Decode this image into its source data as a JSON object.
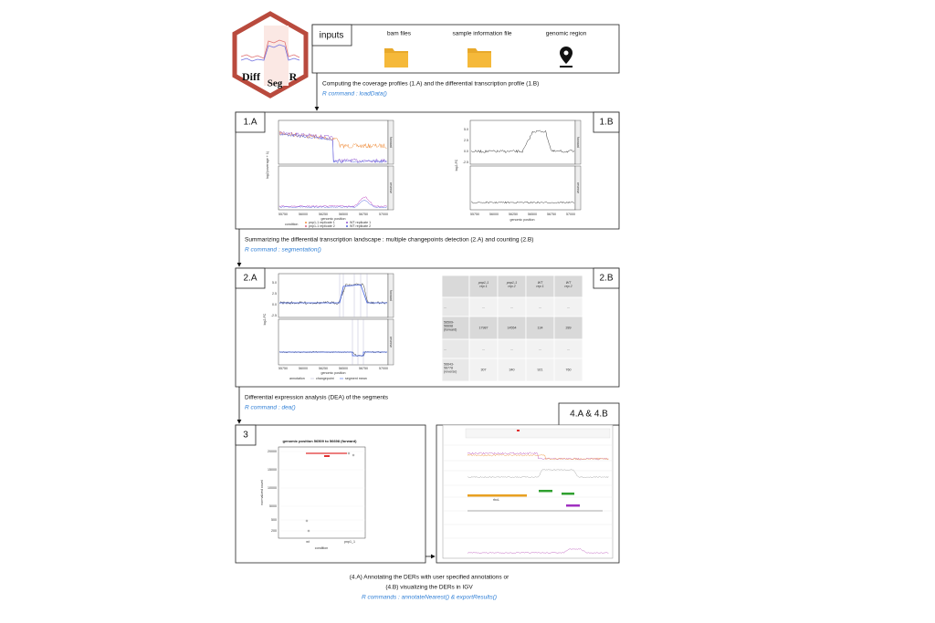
{
  "logo": {
    "left": "Diff",
    "middle": "Seg",
    "right": "R"
  },
  "inputs": {
    "title": "inputs",
    "items": [
      "bam files",
      "sample information file",
      "genomic region"
    ]
  },
  "steps": [
    {
      "description": "Computing the coverage profiles (1.A) and the differential transcription profile (1.B)",
      "command": "R command : loadData()"
    },
    {
      "description": "Summarizing the differential transcription landscape : multiple changepoints detection (2.A) and counting (2.B)",
      "command": "R command : segmentation()"
    },
    {
      "description": "Differential expression analysis (DEA) of the segments",
      "command": "R command : dea()"
    },
    {
      "description_lines": [
        "(4.A) Annotating the DERs with user specified annotations or",
        "(4.B) visualizing the DERs in IGV"
      ],
      "command": "R commands : annotateNearest() & exportResults()"
    }
  ],
  "panel_1a": {
    "label": "1.A",
    "ylabel": "log2(coverage + 1)",
    "xlabel": "genomic position",
    "xticks": [
      "55750",
      "56000",
      "56250",
      "56500",
      "56750",
      "57000"
    ],
    "strips": [
      "forward",
      "reverse"
    ],
    "legend_title": "condition",
    "legend": [
      "pnp1-1 replicate 1",
      "pnp1-1 replicate 2",
      "WT replicate 1",
      "WT replicate 2"
    ]
  },
  "panel_1b": {
    "label": "1.B",
    "ylabel": "log2-FC",
    "xlabel": "genomic position",
    "xticks": [
      "55750",
      "56000",
      "56250",
      "56500",
      "56750",
      "57000"
    ],
    "yticks": [
      "5.0",
      "2.5",
      "0.0",
      "-2.5"
    ],
    "strips": [
      "forward",
      "reverse"
    ]
  },
  "panel_2a": {
    "label": "2.A",
    "ylabel": "log2-FC",
    "xlabel": "genomic position",
    "xticks": [
      "55750",
      "56000",
      "56250",
      "56500",
      "56750",
      "57000"
    ],
    "yticks": [
      "5.0",
      "2.5",
      "0.0",
      "-2.5"
    ],
    "strips": [
      "forward",
      "reverse"
    ],
    "legend_title": "annotation",
    "legend": [
      "changepoint",
      "segment mean"
    ]
  },
  "panel_2b": {
    "label": "2.B",
    "table": {
      "header": [
        "",
        "pnp1-1 rep 1",
        "pnp1-1 rep 2",
        "WT rep 1",
        "WT rep 2"
      ],
      "rows": [
        [
          "...",
          "...",
          "...",
          "...",
          "..."
        ],
        [
          "56509-56698 (forward)",
          "17987",
          "14554",
          "134",
          "289"
        ],
        [
          "...",
          "...",
          "...",
          "...",
          "..."
        ],
        [
          "56643-56778 (reverse)",
          "307",
          "340",
          "921",
          "760"
        ]
      ]
    }
  },
  "panel_3": {
    "label": "3",
    "title": "genomic position 56509 to 56698 (forward)",
    "ylabel": "normalized count",
    "xlabel": "condition",
    "xticks": [
      "wt",
      "pnp1_1"
    ],
    "yticks": [
      "20000",
      "15000",
      "10000",
      "5000",
      "500",
      "200"
    ]
  },
  "panel_4": {
    "label": "4.A & 4.B",
    "gene": "rbcL"
  }
}
